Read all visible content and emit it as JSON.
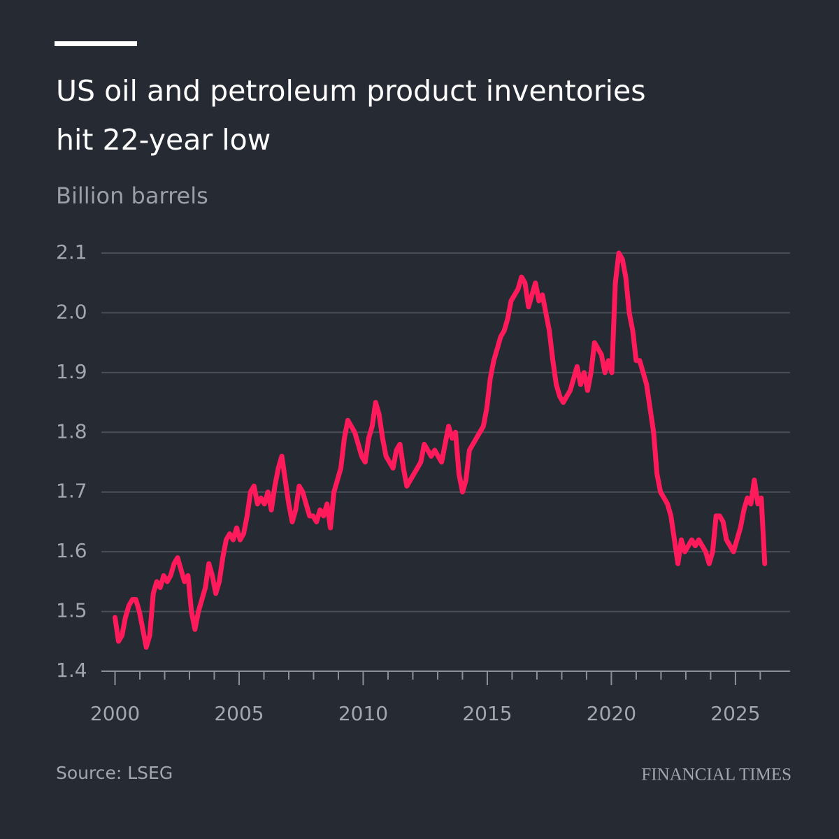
{
  "chart_data": {
    "type": "line",
    "title": [
      "US oil and petroleum product inventories",
      "hit 22-year low"
    ],
    "subtitle": "Billion barrels",
    "source": "Source: LSEG",
    "brand": "FINANCIAL TIMES",
    "color": "#ff1a5c",
    "xlim": [
      1999.45,
      2027.2
    ],
    "ylim": [
      1.4,
      2.1
    ],
    "xticks": [
      2000,
      2005,
      2010,
      2015,
      2020,
      2025
    ],
    "xminor_ticks": [
      2001,
      2002,
      2003,
      2004,
      2006,
      2007,
      2008,
      2009,
      2011,
      2012,
      2013,
      2014,
      2016,
      2017,
      2018,
      2019,
      2021,
      2022,
      2023,
      2024,
      2026
    ],
    "yticks": [
      1.4,
      1.5,
      1.6,
      1.7,
      1.8,
      1.9,
      {
        "value": 2,
        "label": "2.0"
      },
      2.1
    ],
    "grid": true,
    "x": [
      2000,
      2000.14,
      2000.28,
      2000.42,
      2000.56,
      2000.7,
      2000.84,
      2000.98,
      2001.12,
      2001.26,
      2001.4,
      2001.54,
      2001.68,
      2001.82,
      2001.96,
      2002.1,
      2002.24,
      2002.38,
      2002.52,
      2002.66,
      2002.8,
      2002.94,
      2003.08,
      2003.22,
      2003.36,
      2003.5,
      2003.64,
      2003.78,
      2003.92,
      2004.06,
      2004.2,
      2004.34,
      2004.48,
      2004.62,
      2004.76,
      2004.9,
      2005.04,
      2005.18,
      2005.32,
      2005.46,
      2005.6,
      2005.74,
      2005.88,
      2006.02,
      2006.16,
      2006.3,
      2006.44,
      2006.58,
      2006.72,
      2006.86,
      2007,
      2007.14,
      2007.28,
      2007.42,
      2007.56,
      2007.7,
      2007.84,
      2007.98,
      2008.12,
      2008.26,
      2008.4,
      2008.54,
      2008.68,
      2008.82,
      2008.96,
      2009.1,
      2009.24,
      2009.38,
      2009.52,
      2009.66,
      2009.8,
      2009.94,
      2010.08,
      2010.22,
      2010.36,
      2010.5,
      2010.64,
      2010.78,
      2010.92,
      2011.06,
      2011.2,
      2011.34,
      2011.48,
      2011.62,
      2011.76,
      2011.9,
      2012.04,
      2012.18,
      2012.32,
      2012.46,
      2012.6,
      2012.74,
      2012.88,
      2013.02,
      2013.16,
      2013.3,
      2013.44,
      2013.58,
      2013.72,
      2013.86,
      2014,
      2014.14,
      2014.28,
      2014.42,
      2014.56,
      2014.7,
      2014.84,
      2014.98,
      2015.12,
      2015.26,
      2015.4,
      2015.54,
      2015.68,
      2015.82,
      2015.96,
      2016.1,
      2016.24,
      2016.38,
      2016.52,
      2016.66,
      2016.8,
      2016.94,
      2017.08,
      2017.22,
      2017.36,
      2017.5,
      2017.64,
      2017.78,
      2017.92,
      2018.06,
      2018.2,
      2018.34,
      2018.48,
      2018.62,
      2018.76,
      2018.9,
      2019.04,
      2019.18,
      2019.32,
      2019.46,
      2019.6,
      2019.74,
      2019.88,
      2020.02,
      2020.16,
      2020.3,
      2020.44,
      2020.58,
      2020.72,
      2020.86,
      2021,
      2021.14,
      2021.28,
      2021.42,
      2021.56,
      2021.7,
      2021.84,
      2021.98,
      2022.12,
      2022.26,
      2022.4,
      2022.54,
      2022.68,
      2022.82,
      2022.96,
      2023.1,
      2023.24,
      2023.38,
      2023.52,
      2023.66,
      2023.8,
      2023.94,
      2024.08,
      2024.22,
      2024.36,
      2024.5,
      2024.64,
      2024.78,
      2024.92,
      2025.06,
      2025.2,
      2025.34,
      2025.48,
      2025.62,
      2025.76,
      2025.9,
      2026.04,
      2026.18
    ],
    "values": [
      1.49,
      1.45,
      1.46,
      1.49,
      1.51,
      1.52,
      1.52,
      1.5,
      1.47,
      1.44,
      1.46,
      1.53,
      1.55,
      1.54,
      1.56,
      1.55,
      1.56,
      1.58,
      1.59,
      1.57,
      1.55,
      1.56,
      1.5,
      1.47,
      1.5,
      1.52,
      1.54,
      1.58,
      1.56,
      1.53,
      1.55,
      1.59,
      1.62,
      1.63,
      1.62,
      1.64,
      1.62,
      1.63,
      1.66,
      1.7,
      1.71,
      1.68,
      1.69,
      1.68,
      1.7,
      1.67,
      1.71,
      1.74,
      1.76,
      1.72,
      1.68,
      1.65,
      1.67,
      1.71,
      1.7,
      1.68,
      1.66,
      1.66,
      1.65,
      1.67,
      1.66,
      1.68,
      1.64,
      1.7,
      1.72,
      1.74,
      1.79,
      1.82,
      1.81,
      1.8,
      1.78,
      1.76,
      1.75,
      1.79,
      1.81,
      1.85,
      1.83,
      1.79,
      1.76,
      1.75,
      1.74,
      1.77,
      1.78,
      1.74,
      1.71,
      1.72,
      1.73,
      1.74,
      1.75,
      1.78,
      1.77,
      1.76,
      1.77,
      1.76,
      1.75,
      1.78,
      1.81,
      1.79,
      1.8,
      1.73,
      1.7,
      1.72,
      1.77,
      1.78,
      1.79,
      1.8,
      1.81,
      1.84,
      1.89,
      1.92,
      1.94,
      1.96,
      1.97,
      1.99,
      2.02,
      2.03,
      2.04,
      2.06,
      2.05,
      2.01,
      2.03,
      2.05,
      2.02,
      2.03,
      2.0,
      1.97,
      1.92,
      1.88,
      1.86,
      1.85,
      1.86,
      1.87,
      1.89,
      1.91,
      1.88,
      1.9,
      1.87,
      1.9,
      1.95,
      1.94,
      1.93,
      1.9,
      1.92,
      1.9,
      2.05,
      2.1,
      2.09,
      2.06,
      2.0,
      1.97,
      1.92,
      1.92,
      1.9,
      1.88,
      1.84,
      1.8,
      1.73,
      1.7,
      1.69,
      1.68,
      1.66,
      1.62,
      1.58,
      1.62,
      1.6,
      1.61,
      1.62,
      1.61,
      1.62,
      1.61,
      1.6,
      1.58,
      1.6,
      1.66,
      1.66,
      1.65,
      1.62,
      1.61,
      1.6,
      1.62,
      1.64,
      1.67,
      1.69,
      1.68,
      1.72,
      1.68,
      1.69,
      1.58
    ]
  }
}
